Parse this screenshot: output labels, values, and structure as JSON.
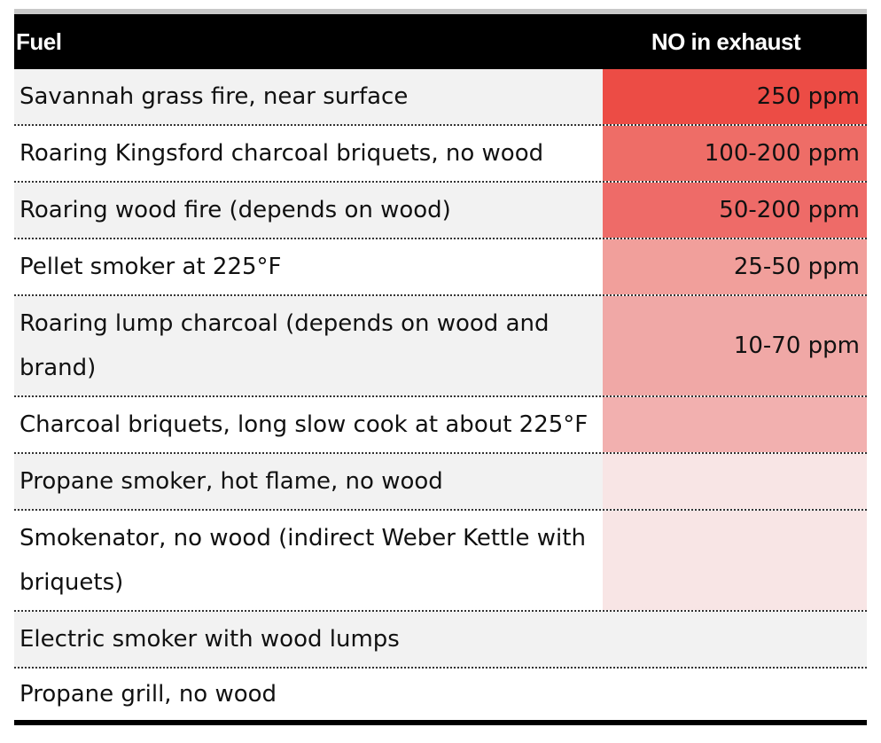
{
  "table": {
    "headers": {
      "fuel": "Fuel",
      "no": "NO in exhaust"
    },
    "rows": [
      {
        "fuel": "Savannah grass fire, near surface",
        "no": "250 ppm",
        "heat_color": "#ec4c45"
      },
      {
        "fuel": "Roaring Kingsford charcoal briquets, no wood",
        "no": "100-200 ppm",
        "heat_color": "#ee6d67"
      },
      {
        "fuel": "Roaring wood fire (depends on wood)",
        "no": "50-200 ppm",
        "heat_color": "#ee6b68"
      },
      {
        "fuel": "Pellet smoker at 225°F",
        "no": "25-50 ppm",
        "heat_color": "#f19f9b"
      },
      {
        "fuel": "Roaring lump charcoal (depends on wood and brand)",
        "no": "10-70 ppm",
        "heat_color": "#f0a8a6"
      },
      {
        "fuel": "Charcoal briquets, long slow cook at about 225°F",
        "no": "",
        "heat_color": "#f2b0af"
      },
      {
        "fuel": "Propane smoker, hot flame, no wood",
        "no": "",
        "heat_color": "#f8e5e5"
      },
      {
        "fuel": "Smokenator, no wood (indirect Weber Kettle with briquets)",
        "no": "",
        "heat_color": "#f8e5e5"
      },
      {
        "fuel": "Electric smoker with wood lumps",
        "no": "",
        "heat_color": ""
      },
      {
        "fuel": "Propane grill, no wood",
        "no": "",
        "heat_color": ""
      }
    ]
  }
}
